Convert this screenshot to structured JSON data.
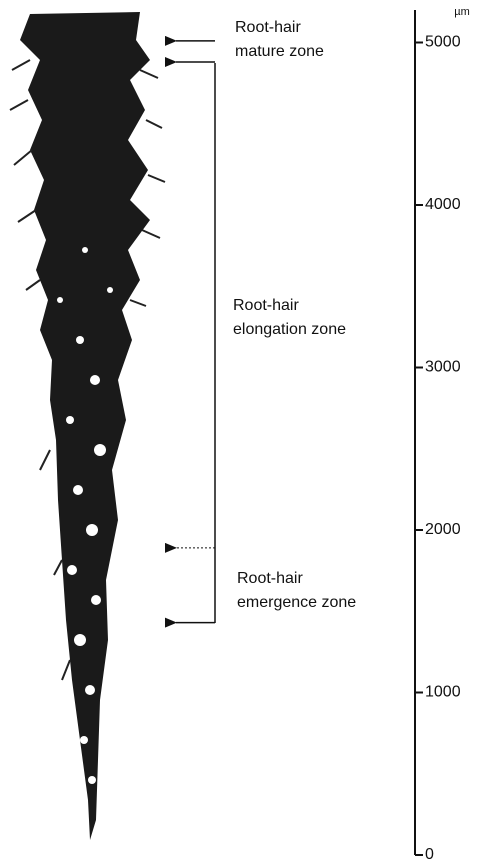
{
  "scale": {
    "unit": "µm",
    "lim": [
      0,
      5200
    ],
    "ticks": [
      0,
      1000,
      2000,
      3000,
      4000,
      5000
    ]
  },
  "zones": [
    {
      "lines": [
        "Root-hair",
        "mature zone"
      ]
    },
    {
      "lines": [
        "Root-hair",
        "elongation zone"
      ]
    },
    {
      "lines": [
        "Root-hair",
        "emergence zone"
      ]
    }
  ],
  "arrows": [
    {
      "value": 5010,
      "style": "solid"
    },
    {
      "value": 4880,
      "style": "solid"
    },
    {
      "value": 1890,
      "style": "dotted"
    },
    {
      "value": 1430,
      "style": "solid"
    }
  ]
}
